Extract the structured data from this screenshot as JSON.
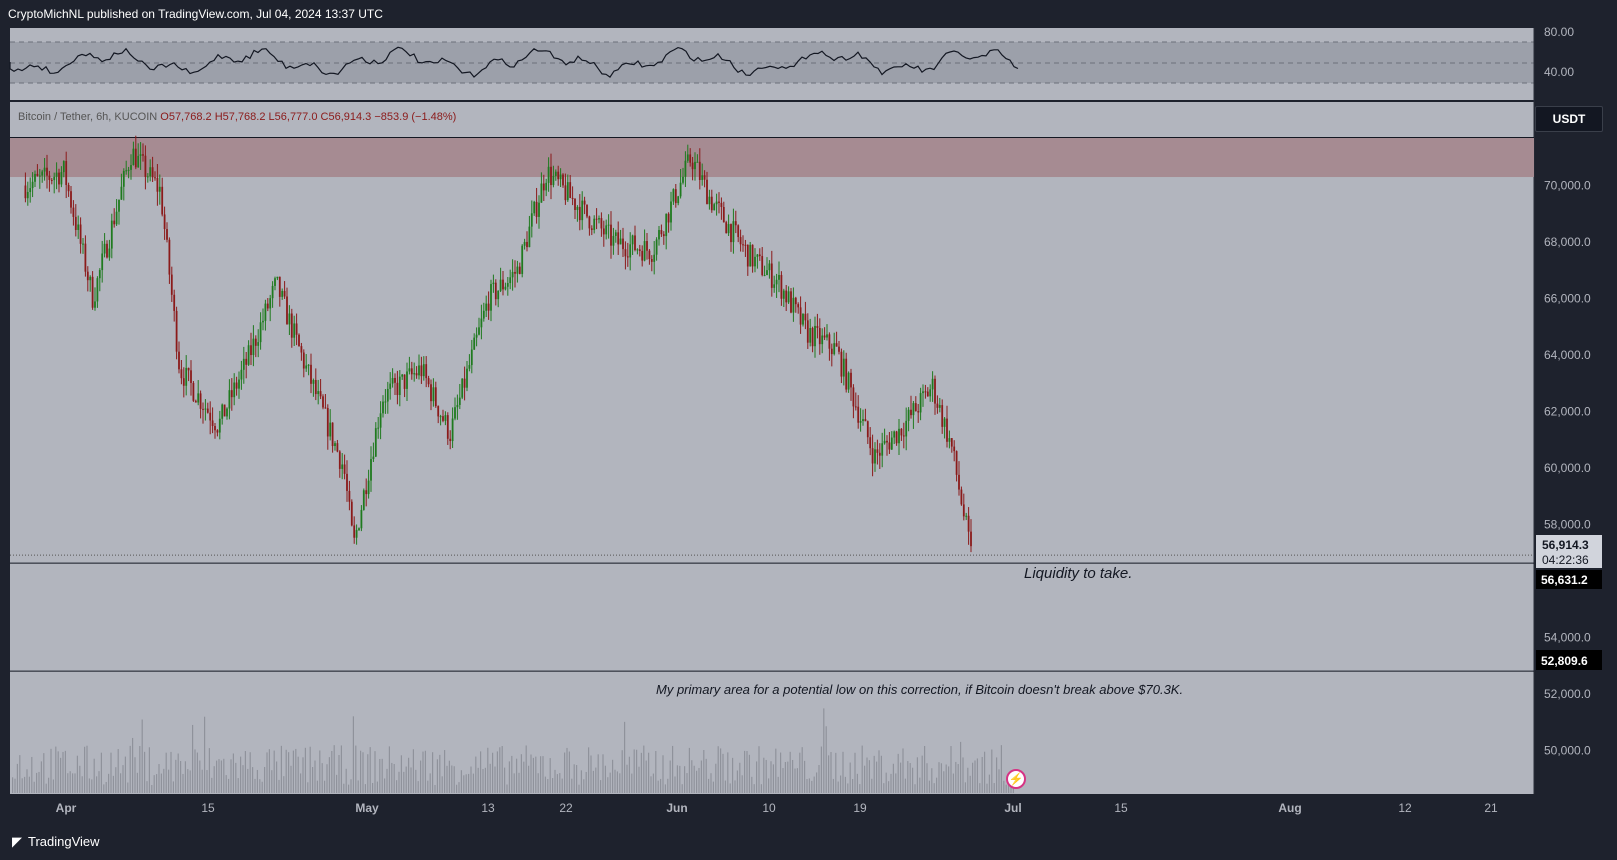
{
  "header": {
    "publisher": "CryptoMichNL published on TradingView.com, Jul 04, 2024 13:37 UTC"
  },
  "footer": {
    "brand": "TradingView"
  },
  "instrument": {
    "legend": "Bitcoin / Tether, 6h, KUCOIN",
    "open": "O57,768.2",
    "high": "H57,768.2",
    "low": "L56,777.0",
    "close": "C56,914.3",
    "change": "−853.9 (−1.48%)",
    "currency": "USDT"
  },
  "rsi": {
    "levels": [
      "80.00",
      "40.00"
    ]
  },
  "price_axis": {
    "labels": [
      "70,000.0",
      "68,000.0",
      "66,000.0",
      "64,000.0",
      "62,000.0",
      "60,000.0",
      "58,000.0",
      "54,000.0",
      "52,000.0",
      "50,000.0"
    ]
  },
  "badges": {
    "last_price": "56,914.3",
    "countdown": "04:22:36",
    "level_low": "56,631.2",
    "level_target": "52,809.6"
  },
  "time_axis": {
    "labels": [
      {
        "text": "Apr",
        "bold": true
      },
      {
        "text": "15",
        "bold": false
      },
      {
        "text": "May",
        "bold": true
      },
      {
        "text": "13",
        "bold": false
      },
      {
        "text": "22",
        "bold": false
      },
      {
        "text": "Jun",
        "bold": true
      },
      {
        "text": "10",
        "bold": false
      },
      {
        "text": "19",
        "bold": false
      },
      {
        "text": "Jul",
        "bold": true
      },
      {
        "text": "15",
        "bold": false
      },
      {
        "text": "Aug",
        "bold": true
      },
      {
        "text": "12",
        "bold": false
      },
      {
        "text": "21",
        "bold": false
      }
    ]
  },
  "annotations": {
    "liquidity": "Liquidity to take.",
    "primary_area": "My primary area for a potential low on this correction, if Bitcoin doesn't break above $70.3K."
  },
  "colors": {
    "up": "#1f7a1f",
    "down": "#8b1a1a",
    "zone": "#a68b92",
    "panel": "#b2b5be"
  },
  "chart_data": {
    "type": "candlestick",
    "timeframe": "6h",
    "x_range": [
      "2024-03-28",
      "2024-08-25"
    ],
    "ylim": [
      48000,
      73000
    ],
    "series": [
      {
        "name": "Bitcoin / Tether",
        "dates": [
          "2024-03-28",
          "2024-04-01",
          "2024-04-04",
          "2024-04-08",
          "2024-04-11",
          "2024-04-13",
          "2024-04-17",
          "2024-04-20",
          "2024-04-23",
          "2024-04-26",
          "2024-04-30",
          "2024-05-01",
          "2024-05-04",
          "2024-05-08",
          "2024-05-11",
          "2024-05-15",
          "2024-05-18",
          "2024-05-21",
          "2024-05-25",
          "2024-05-28",
          "2024-06-01",
          "2024-06-05",
          "2024-06-07",
          "2024-06-11",
          "2024-06-14",
          "2024-06-17",
          "2024-06-20",
          "2024-06-24",
          "2024-06-27",
          "2024-06-30",
          "2024-07-02",
          "2024-07-04"
        ],
        "close": [
          70000,
          70500,
          66000,
          71200,
          69800,
          63500,
          61500,
          63800,
          66500,
          63600,
          60000,
          57200,
          62500,
          63500,
          61200,
          66000,
          67000,
          70500,
          69000,
          68000,
          67700,
          71000,
          69500,
          67500,
          66600,
          64800,
          64200,
          60400,
          61500,
          62900,
          60700,
          56914
        ]
      }
    ],
    "zone": {
      "from": 70300,
      "to": 71700
    },
    "levels": [
      56631.2,
      52809.6
    ]
  }
}
